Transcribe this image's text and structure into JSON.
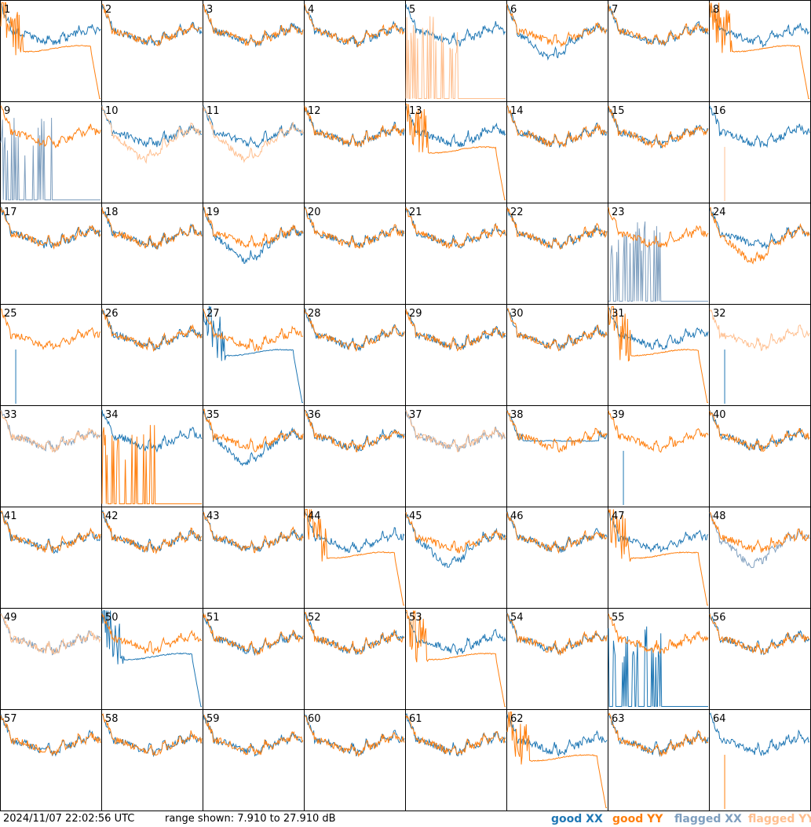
{
  "footer": {
    "timestamp": "2024/11/07 22:02:56 UTC",
    "range_text": "range shown: 7.910 to 27.910 dB"
  },
  "legend": [
    {
      "key": "good_xx",
      "label": "good XX",
      "color": "#1f77b4"
    },
    {
      "key": "good_yy",
      "label": "good YY",
      "color": "#ff7f0e"
    },
    {
      "key": "flagged_xx",
      "label": "flagged XX",
      "color": "#7f9fbf"
    },
    {
      "key": "flagged_yy",
      "label": "flagged YY",
      "color": "#ffbf8f"
    }
  ],
  "chart_data": {
    "type": "line",
    "title": "",
    "ylabel": "",
    "xlabel": "",
    "y_range_db": [
      7.91,
      27.91
    ],
    "grid": "8x8",
    "series_names": [
      "good XX",
      "good YY",
      "flagged XX",
      "flagged YY"
    ],
    "panels": [
      {
        "id": 1,
        "xx": "normal",
        "yy": "rolloff",
        "yy_flag": "good"
      },
      {
        "id": 2,
        "xx": "normal",
        "yy": "normal"
      },
      {
        "id": 3,
        "xx": "normal",
        "yy": "normal"
      },
      {
        "id": 4,
        "xx": "normal",
        "yy": "normal"
      },
      {
        "id": 5,
        "xx": "normal",
        "yy": "spiky",
        "yy_flag": "flagged"
      },
      {
        "id": 6,
        "xx": "lowdip",
        "yy": "normal"
      },
      {
        "id": 7,
        "xx": "normal",
        "yy": "normal"
      },
      {
        "id": 8,
        "xx": "normal",
        "yy": "rolloff"
      },
      {
        "id": 9,
        "xx": "spiky",
        "yy": "normal",
        "xx_flag": "flagged"
      },
      {
        "id": 10,
        "xx": "normal",
        "yy": "lowdip",
        "yy_flag": "flagged"
      },
      {
        "id": 11,
        "xx": "normal",
        "yy": "lowdip",
        "yy_flag": "flagged"
      },
      {
        "id": 12,
        "xx": "normal",
        "yy": "normal"
      },
      {
        "id": 13,
        "xx": "normal",
        "yy": "rolloff"
      },
      {
        "id": 14,
        "xx": "normal",
        "yy": "normal"
      },
      {
        "id": 15,
        "xx": "normal",
        "yy": "normal"
      },
      {
        "id": 16,
        "xx": "normal",
        "yy": "spike",
        "yy_flag": "flagged"
      },
      {
        "id": 17,
        "xx": "normal",
        "yy": "normal"
      },
      {
        "id": 18,
        "xx": "normal",
        "yy": "normal"
      },
      {
        "id": 19,
        "xx": "lowdip",
        "yy": "normal"
      },
      {
        "id": 20,
        "xx": "normal",
        "yy": "normal"
      },
      {
        "id": 21,
        "xx": "normal",
        "yy": "normal"
      },
      {
        "id": 22,
        "xx": "normal",
        "yy": "normal"
      },
      {
        "id": 23,
        "xx": "spiky",
        "yy": "normal",
        "xx_flag": "flagged"
      },
      {
        "id": 24,
        "xx": "normal",
        "yy": "lowdip"
      },
      {
        "id": 25,
        "xx": "spike",
        "yy": "normal"
      },
      {
        "id": 26,
        "xx": "normal",
        "yy": "normal"
      },
      {
        "id": 27,
        "xx": "rolloff",
        "yy": "normal"
      },
      {
        "id": 28,
        "xx": "normal",
        "yy": "normal"
      },
      {
        "id": 29,
        "xx": "normal",
        "yy": "normal"
      },
      {
        "id": 30,
        "xx": "normal",
        "yy": "normal"
      },
      {
        "id": 31,
        "xx": "normal",
        "yy": "rolloff"
      },
      {
        "id": 32,
        "xx": "spike",
        "yy": "normal",
        "yy_flag": "flagged"
      },
      {
        "id": 33,
        "xx": "normal",
        "yy": "normal",
        "xx_flag": "flagged",
        "yy_flag": "flagged"
      },
      {
        "id": 34,
        "xx": "normal",
        "yy": "spiky"
      },
      {
        "id": 35,
        "xx": "lowdip",
        "yy": "normal"
      },
      {
        "id": 36,
        "xx": "normal",
        "yy": "normal"
      },
      {
        "id": 37,
        "xx": "normal",
        "yy": "normal",
        "xx_flag": "flagged",
        "yy_flag": "flagged"
      },
      {
        "id": 38,
        "xx": "flat",
        "yy": "normal"
      },
      {
        "id": 39,
        "xx": "spike",
        "yy": "normal"
      },
      {
        "id": 40,
        "xx": "normal",
        "yy": "normal"
      },
      {
        "id": 41,
        "xx": "normal",
        "yy": "normal"
      },
      {
        "id": 42,
        "xx": "normal",
        "yy": "normal"
      },
      {
        "id": 43,
        "xx": "normal",
        "yy": "normal"
      },
      {
        "id": 44,
        "xx": "normal",
        "yy": "rolloff"
      },
      {
        "id": 45,
        "xx": "lowdip",
        "yy": "normal"
      },
      {
        "id": 46,
        "xx": "normal",
        "yy": "normal"
      },
      {
        "id": 47,
        "xx": "normal",
        "yy": "rolloff"
      },
      {
        "id": 48,
        "xx": "lowdip",
        "yy": "normal",
        "xx_flag": "flagged"
      },
      {
        "id": 49,
        "xx": "normal",
        "yy": "normal",
        "xx_flag": "flagged",
        "yy_flag": "flagged"
      },
      {
        "id": 50,
        "xx": "rolloff",
        "yy": "normal"
      },
      {
        "id": 51,
        "xx": "normal",
        "yy": "normal"
      },
      {
        "id": 52,
        "xx": "normal",
        "yy": "normal"
      },
      {
        "id": 53,
        "xx": "normal",
        "yy": "rolloff"
      },
      {
        "id": 54,
        "xx": "normal",
        "yy": "normal"
      },
      {
        "id": 55,
        "xx": "spiky",
        "yy": "normal"
      },
      {
        "id": 56,
        "xx": "normal",
        "yy": "normal"
      },
      {
        "id": 57,
        "xx": "normal",
        "yy": "normal"
      },
      {
        "id": 58,
        "xx": "normal",
        "yy": "normal"
      },
      {
        "id": 59,
        "xx": "normal",
        "yy": "normal"
      },
      {
        "id": 60,
        "xx": "normal",
        "yy": "normal"
      },
      {
        "id": 61,
        "xx": "normal",
        "yy": "normal"
      },
      {
        "id": 62,
        "xx": "normal",
        "yy": "rolloff"
      },
      {
        "id": 63,
        "xx": "normal",
        "yy": "normal"
      },
      {
        "id": 64,
        "xx": "normal",
        "yy": "spike"
      }
    ]
  }
}
